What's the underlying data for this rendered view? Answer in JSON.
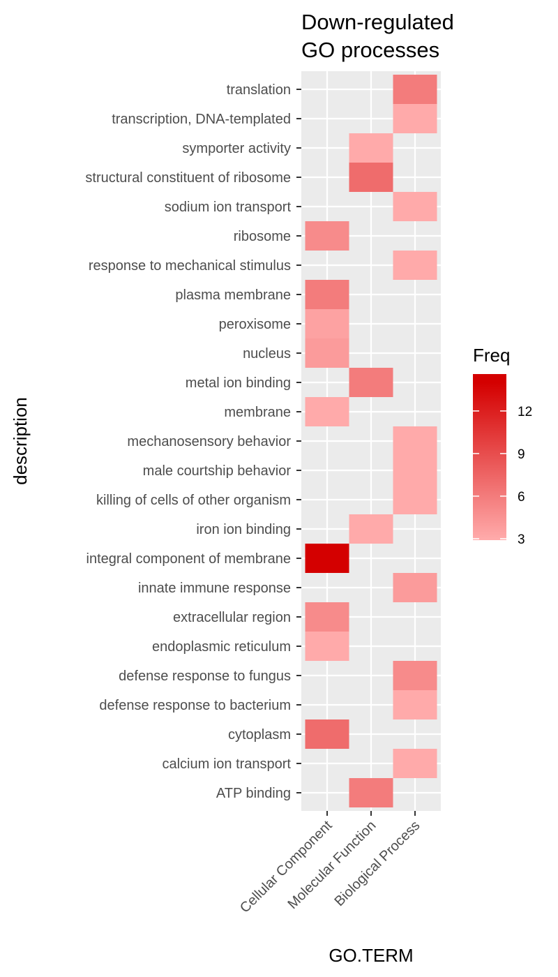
{
  "chart_data": {
    "type": "heatmap",
    "title": [
      "Down-regulated",
      "GO processes"
    ],
    "xlabel": "GO.TERM",
    "ylabel": "description",
    "x": [
      "Cellular Component",
      "Molecular Function",
      "Biological Process"
    ],
    "y": [
      "ATP binding",
      "calcium ion transport",
      "cytoplasm",
      "defense response to bacterium",
      "defense response to fungus",
      "endoplasmic reticulum",
      "extracellular region",
      "innate immune response",
      "integral component of membrane",
      "iron ion binding",
      "killing of cells of other organism",
      "male courtship behavior",
      "mechanosensory behavior",
      "membrane",
      "metal ion binding",
      "nucleus",
      "peroxisome",
      "plasma membrane",
      "response to mechanical stimulus",
      "ribosome",
      "sodium ion transport",
      "structural constituent of ribosome",
      "symporter activity",
      "transcription, DNA-templated",
      "translation"
    ],
    "cells": [
      {
        "x": "Molecular Function",
        "y": "ATP binding",
        "freq": 6
      },
      {
        "x": "Biological Process",
        "y": "calcium ion transport",
        "freq": 3
      },
      {
        "x": "Cellular Component",
        "y": "cytoplasm",
        "freq": 7
      },
      {
        "x": "Biological Process",
        "y": "defense response to bacterium",
        "freq": 3
      },
      {
        "x": "Biological Process",
        "y": "defense response to fungus",
        "freq": 5
      },
      {
        "x": "Cellular Component",
        "y": "endoplasmic reticulum",
        "freq": 3
      },
      {
        "x": "Cellular Component",
        "y": "extracellular region",
        "freq": 5
      },
      {
        "x": "Biological Process",
        "y": "innate immune response",
        "freq": 4
      },
      {
        "x": "Cellular Component",
        "y": "integral component of membrane",
        "freq": 14
      },
      {
        "x": "Molecular Function",
        "y": "iron ion binding",
        "freq": 3
      },
      {
        "x": "Biological Process",
        "y": "killing of cells of other organism",
        "freq": 3
      },
      {
        "x": "Biological Process",
        "y": "male courtship behavior",
        "freq": 3
      },
      {
        "x": "Biological Process",
        "y": "mechanosensory behavior",
        "freq": 3
      },
      {
        "x": "Cellular Component",
        "y": "membrane",
        "freq": 3
      },
      {
        "x": "Molecular Function",
        "y": "metal ion binding",
        "freq": 6
      },
      {
        "x": "Cellular Component",
        "y": "nucleus",
        "freq": 4
      },
      {
        "x": "Cellular Component",
        "y": "peroxisome",
        "freq": 3.5
      },
      {
        "x": "Cellular Component",
        "y": "plasma membrane",
        "freq": 6
      },
      {
        "x": "Biological Process",
        "y": "response to mechanical stimulus",
        "freq": 3
      },
      {
        "x": "Cellular Component",
        "y": "ribosome",
        "freq": 5
      },
      {
        "x": "Biological Process",
        "y": "sodium ion transport",
        "freq": 3
      },
      {
        "x": "Molecular Function",
        "y": "structural constituent of ribosome",
        "freq": 7
      },
      {
        "x": "Molecular Function",
        "y": "symporter activity",
        "freq": 3
      },
      {
        "x": "Biological Process",
        "y": "transcription, DNA-templated",
        "freq": 3
      },
      {
        "x": "Biological Process",
        "y": "translation",
        "freq": 6
      }
    ],
    "legend": {
      "title": "Freq",
      "position": "right",
      "ticks": [
        3,
        6,
        9,
        12
      ],
      "range": [
        3,
        14
      ],
      "low_color": "#FFAAAA",
      "high_color": "#D40000"
    },
    "panel_background": "#EBEBEB",
    "grid_color": "#FFFFFF"
  }
}
